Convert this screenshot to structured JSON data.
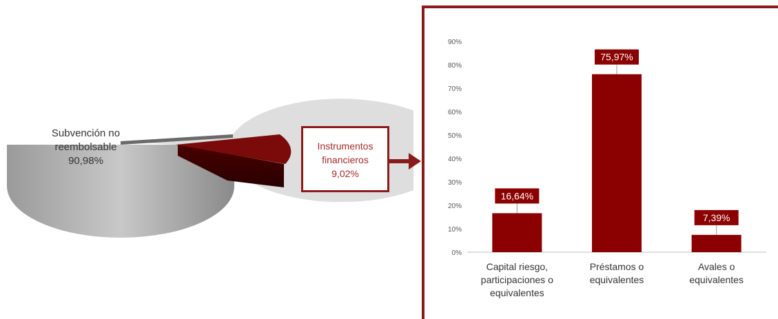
{
  "pie": {
    "slices": [
      {
        "label": "Subvención no reembolsable",
        "value": 90.98,
        "value_label": "90,98%",
        "color": "#d9d9d9"
      },
      {
        "label": "Instrumentos financieros",
        "value": 9.02,
        "value_label": "9,02%",
        "color": "#7b0a0a"
      }
    ],
    "label_main_line1": "Subvención no",
    "label_main_line2": "reembolsable",
    "label_main_value": "90,98%",
    "callout_line1": "Instrumentos",
    "callout_line2": "financieros",
    "callout_value": "9,02%"
  },
  "chart_data": [
    {
      "type": "pie",
      "slices": [
        {
          "label": "Subvención no reembolsable",
          "value": 90.98
        },
        {
          "label": "Instrumentos financieros",
          "value": 9.02
        }
      ]
    },
    {
      "type": "bar",
      "categories": [
        "Capital riesgo, participaciones o equivalentes",
        "Préstamos o equivalentes",
        "Avales o equivalentes"
      ],
      "category_lines": [
        [
          "Capital riesgo,",
          "participaciones o",
          "equivalentes"
        ],
        [
          "Préstamos o",
          "equivalentes"
        ],
        [
          "Avales o",
          "equivalentes"
        ]
      ],
      "values": [
        16.64,
        75.97,
        7.39
      ],
      "data_labels": [
        "16,64%",
        "75,97%",
        "7,39%"
      ],
      "ylim": [
        0,
        90
      ],
      "yticks": [
        "0%",
        "10%",
        "20%",
        "30%",
        "40%",
        "50%",
        "60%",
        "70%",
        "80%",
        "90%"
      ],
      "bar_color": "#8b0000",
      "grid": false
    }
  ]
}
